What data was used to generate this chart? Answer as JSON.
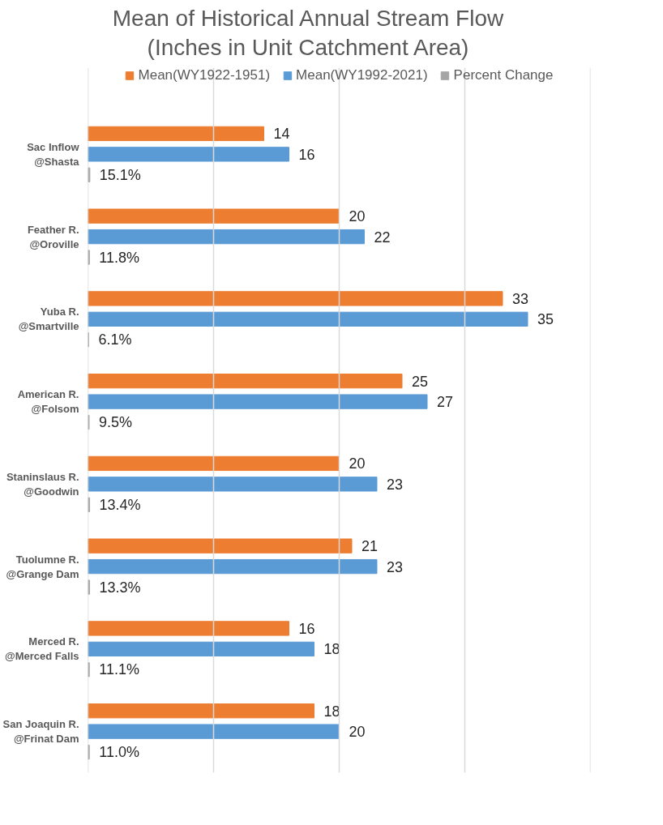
{
  "chart_data": {
    "type": "bar",
    "orientation": "horizontal",
    "title": "Mean of Historical Annual Stream Flow\n(Inches in Unit Catchment Area)",
    "categories": [
      "Sac Inflow\n@Shasta",
      "Feather R.\n@Oroville",
      "Yuba R.\n@Smartville",
      "American R.\n@Folsom",
      "Staninslaus R.\n@Goodwin",
      "Tuolumne R.\n@Grange Dam",
      "Merced R.\n@Merced Falls",
      "San Joaquin R.\n@Frinat Dam"
    ],
    "series": [
      {
        "name": "Mean(WY1922-1951)",
        "color": "#ed7d31",
        "values": [
          14,
          20,
          33,
          25,
          20,
          21,
          16,
          18
        ]
      },
      {
        "name": "Mean(WY1992-2021)",
        "color": "#5b9bd5",
        "values": [
          16,
          22,
          35,
          27,
          23,
          23,
          18,
          20
        ]
      },
      {
        "name": "Percent Change",
        "color": "#a5a5a5",
        "values": [
          0.151,
          0.118,
          0.061,
          0.095,
          0.134,
          0.133,
          0.111,
          0.11
        ],
        "value_labels": [
          "15.1%",
          "11.8%",
          "6.1%",
          "9.5%",
          "13.4%",
          "13.3%",
          "11.1%",
          "11.0%"
        ]
      }
    ],
    "data_labels": true,
    "xlim": [
      0,
      40
    ],
    "xticks": [
      {
        "value": 0,
        "label": null
      },
      {
        "value": 10,
        "label": null
      },
      {
        "value": 20,
        "label": null
      },
      {
        "value": 30,
        "label": null
      },
      {
        "value": 40,
        "label": null
      }
    ],
    "tick_labels": "y",
    "grid": "x",
    "legend": "top"
  }
}
